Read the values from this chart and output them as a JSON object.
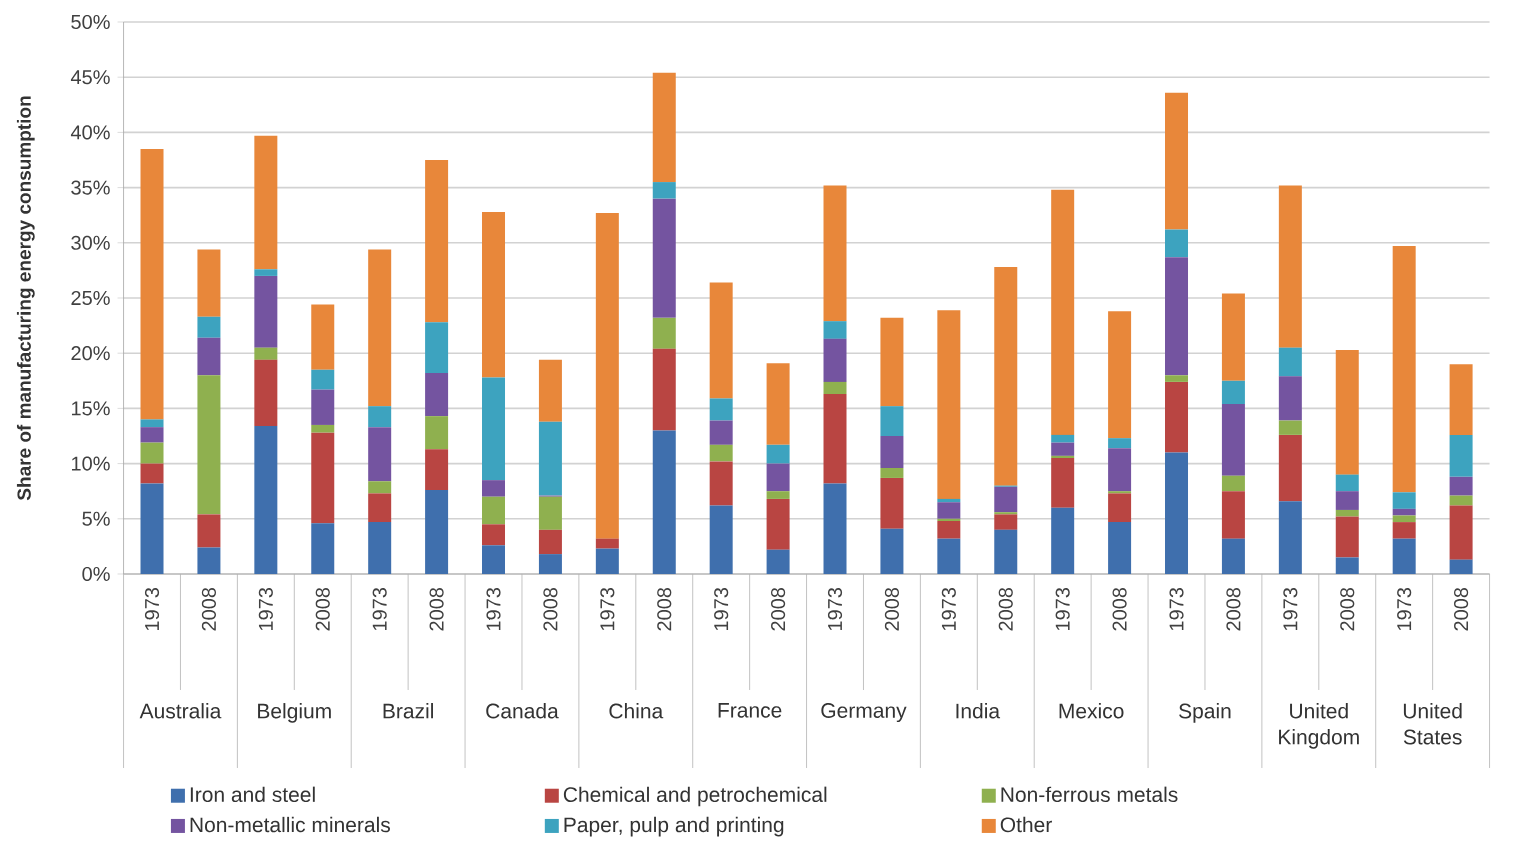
{
  "chart_data": {
    "type": "bar",
    "stacked": true,
    "ylabel": "Share of manufacturing energy consumption",
    "categories": [
      "1973",
      "2008",
      "1973",
      "2008",
      "1973",
      "2008",
      "1973",
      "2008",
      "1973",
      "2008",
      "1973",
      "2008",
      "1973",
      "2008",
      "1973",
      "2008",
      "1973",
      "2008",
      "1973",
      "2008",
      "1973",
      "2008",
      "1973",
      "2008"
    ],
    "annotations": [
      "Australia",
      "Belgium",
      "Brazil",
      "Canada",
      "China",
      "France",
      "Germany",
      "India",
      "Mexico",
      "Spain",
      "United Kingdom",
      "United States"
    ],
    "series": [
      {
        "name": "Iron and steel",
        "color": "#3f6fad",
        "values": [
          8.2,
          2.4,
          13.4,
          4.6,
          4.7,
          7.6,
          2.6,
          1.8,
          2.3,
          13.0,
          6.2,
          2.2,
          8.2,
          4.1,
          3.2,
          4.0,
          6.0,
          4.7,
          11.0,
          3.2,
          6.6,
          1.5,
          3.2,
          1.3
        ]
      },
      {
        "name": "Chemical and petrochemical",
        "color": "#b94542",
        "values": [
          1.8,
          3.0,
          6.0,
          8.2,
          2.6,
          3.7,
          1.9,
          2.2,
          0.9,
          7.4,
          4.0,
          4.6,
          8.1,
          4.6,
          1.6,
          1.4,
          4.5,
          2.6,
          6.4,
          4.3,
          6.0,
          3.7,
          1.5,
          4.9
        ]
      },
      {
        "name": "Non-ferrous metals",
        "color": "#8fb04f",
        "values": [
          1.9,
          12.6,
          1.1,
          0.7,
          1.1,
          3.0,
          2.5,
          3.0,
          0,
          2.8,
          1.5,
          0.7,
          1.1,
          0.9,
          0.2,
          0.2,
          0.2,
          0.2,
          0.6,
          1.4,
          1.3,
          0.6,
          0.6,
          0.9
        ]
      },
      {
        "name": "Non-metallic minerals",
        "color": "#7454a0",
        "values": [
          1.4,
          3.4,
          6.5,
          3.2,
          4.9,
          3.9,
          1.5,
          0.1,
          0,
          10.8,
          2.2,
          2.5,
          3.9,
          2.9,
          1.5,
          2.3,
          1.2,
          3.9,
          10.7,
          6.5,
          4.0,
          1.7,
          0.6,
          1.7
        ]
      },
      {
        "name": "Paper, pulp and printing",
        "color": "#3da3bf",
        "values": [
          0.7,
          1.9,
          0.6,
          1.8,
          1.9,
          4.6,
          9.3,
          6.7,
          0,
          1.5,
          2.0,
          1.7,
          1.6,
          2.7,
          0.3,
          0.1,
          0.7,
          0.9,
          2.5,
          2.1,
          2.6,
          1.5,
          1.5,
          3.8
        ]
      },
      {
        "name": "Other",
        "color": "#e8873a",
        "values": [
          24.5,
          6.1,
          12.1,
          5.9,
          14.2,
          14.7,
          15.0,
          5.6,
          29.5,
          9.9,
          10.5,
          7.4,
          12.3,
          8.0,
          17.1,
          19.8,
          22.2,
          11.5,
          12.4,
          7.9,
          14.7,
          11.3,
          22.3,
          6.4
        ]
      }
    ],
    "ylim": [
      0,
      50
    ],
    "yticks": [
      {
        "value": 0,
        "label": "0%"
      },
      {
        "value": 5,
        "label": "5%"
      },
      {
        "value": 10,
        "label": "10%"
      },
      {
        "value": 15,
        "label": "15%"
      },
      {
        "value": 20,
        "label": "20%"
      },
      {
        "value": 25,
        "label": "25%"
      },
      {
        "value": 30,
        "label": "30%"
      },
      {
        "value": 35,
        "label": "35%"
      },
      {
        "value": 40,
        "label": "40%"
      },
      {
        "value": 45,
        "label": "45%"
      },
      {
        "value": 50,
        "label": "50%"
      }
    ],
    "grid": "y",
    "legend": "bottom"
  }
}
